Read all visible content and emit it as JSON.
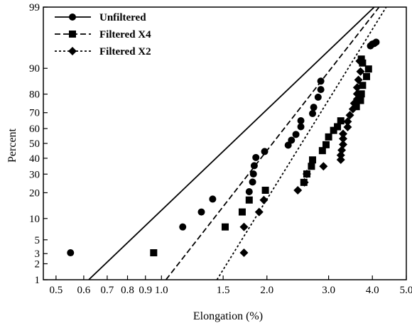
{
  "chart_data": {
    "type": "scatter",
    "title": "",
    "xlabel": "Elongation (%)",
    "ylabel": "Percent",
    "x_scale": "log",
    "y_scale": "normal-probability",
    "xlim": [
      0.46,
      5.0
    ],
    "ylim": [
      1,
      99
    ],
    "x_ticks": [
      0.5,
      0.6,
      0.7,
      0.8,
      0.9,
      1.0,
      1.5,
      2.0,
      3.0,
      4.0,
      5.0
    ],
    "x_tick_labels": [
      "0.5",
      "0.6",
      "0.7",
      "0.8",
      "0.9",
      "1.0",
      "1.5",
      "2.0",
      "3.0",
      "4.0",
      "5.0"
    ],
    "y_ticks": [
      1,
      2,
      3,
      5,
      10,
      20,
      30,
      40,
      50,
      60,
      70,
      80,
      90,
      99
    ],
    "y_tick_labels": [
      "1",
      "2",
      "3",
      "5",
      "10",
      "20",
      "30",
      "40",
      "50",
      "60",
      "70",
      "80",
      "90",
      "99"
    ],
    "grid": false,
    "legend_position": "top-left",
    "series": [
      {
        "name": "Unfiltered",
        "marker": "circle",
        "line_style": "solid",
        "fit_line": [
          [
            0.62,
            1
          ],
          [
            4.05,
            99
          ]
        ],
        "points": [
          [
            0.55,
            3.1
          ],
          [
            1.15,
            7.7
          ],
          [
            1.3,
            12.1
          ],
          [
            1.4,
            17.1
          ],
          [
            1.78,
            20.5
          ],
          [
            1.82,
            25.5
          ],
          [
            1.83,
            30.1
          ],
          [
            1.84,
            35.2
          ],
          [
            1.86,
            40.5
          ],
          [
            1.97,
            44.5
          ],
          [
            2.3,
            48.8
          ],
          [
            2.35,
            52.2
          ],
          [
            2.42,
            56.1
          ],
          [
            2.5,
            61.2
          ],
          [
            2.5,
            65.1
          ],
          [
            2.7,
            69.5
          ],
          [
            2.72,
            73.1
          ],
          [
            2.8,
            78.5
          ],
          [
            2.85,
            82.1
          ],
          [
            2.85,
            85.6
          ],
          [
            3.95,
            95.2
          ],
          [
            4.0,
            95.5
          ],
          [
            4.05,
            95.6
          ],
          [
            4.1,
            95.8
          ]
        ]
      },
      {
        "name": "Filtered X4",
        "marker": "square",
        "line_style": "dashed",
        "fit_line": [
          [
            1.03,
            1
          ],
          [
            4.18,
            99
          ]
        ],
        "points": [
          [
            0.95,
            3.1
          ],
          [
            1.52,
            7.7
          ],
          [
            1.7,
            12.1
          ],
          [
            1.78,
            16.7
          ],
          [
            1.98,
            21.2
          ],
          [
            2.55,
            25.3
          ],
          [
            2.6,
            30.1
          ],
          [
            2.68,
            34.8
          ],
          [
            2.7,
            38.9
          ],
          [
            2.88,
            45.1
          ],
          [
            2.95,
            49.1
          ],
          [
            3.0,
            54.4
          ],
          [
            3.1,
            58.8
          ],
          [
            3.18,
            61.2
          ],
          [
            3.25,
            65.0
          ],
          [
            3.6,
            73.5
          ],
          [
            3.7,
            76.8
          ],
          [
            3.72,
            80.1
          ],
          [
            3.75,
            83.9
          ],
          [
            3.85,
            87.3
          ],
          [
            3.9,
            89.8
          ],
          [
            3.75,
            91.5
          ],
          [
            3.72,
            92.5
          ]
        ]
      },
      {
        "name": "Filtered X2",
        "marker": "diamond",
        "line_style": "dotted",
        "fit_line": [
          [
            1.44,
            1
          ],
          [
            4.38,
            99
          ]
        ],
        "points": [
          [
            1.72,
            3.1
          ],
          [
            1.72,
            7.7
          ],
          [
            1.9,
            12.1
          ],
          [
            1.96,
            16.7
          ],
          [
            2.45,
            21.2
          ],
          [
            2.56,
            25.3
          ],
          [
            2.6,
            30.1
          ],
          [
            2.9,
            34.8
          ],
          [
            3.25,
            39.0
          ],
          [
            3.25,
            42.0
          ],
          [
            3.27,
            45.4
          ],
          [
            3.3,
            49.3
          ],
          [
            3.3,
            53.2
          ],
          [
            3.3,
            56.5
          ],
          [
            3.4,
            61.0
          ],
          [
            3.4,
            64.5
          ],
          [
            3.45,
            68.5
          ],
          [
            3.52,
            72.1
          ],
          [
            3.55,
            75.3
          ],
          [
            3.62,
            77.5
          ],
          [
            3.62,
            80.1
          ],
          [
            3.62,
            83.0
          ],
          [
            3.65,
            86.1
          ],
          [
            3.7,
            89.0
          ],
          [
            3.68,
            92.0
          ]
        ]
      }
    ]
  }
}
